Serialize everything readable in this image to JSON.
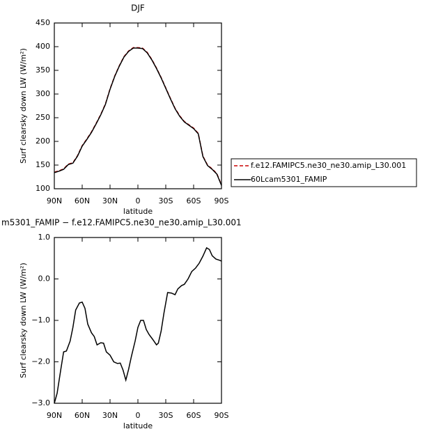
{
  "chart_data": [
    {
      "type": "line",
      "title": "DJF",
      "xlabel": "latitude",
      "ylabel": "Surf clearsky down LW (W/m²)",
      "x": [
        90,
        85,
        80,
        75,
        70,
        65,
        60,
        55,
        50,
        45,
        40,
        35,
        30,
        25,
        20,
        15,
        10,
        5,
        0,
        -5,
        -10,
        -15,
        -20,
        -25,
        -30,
        -35,
        -40,
        -45,
        -50,
        -55,
        -60,
        -65,
        -70,
        -75,
        -80,
        -85,
        -90
      ],
      "series": [
        {
          "name": "f.e12.FAMIPC5.ne30_ne30.amip_L30.001",
          "color": "#cc0000",
          "dash": true,
          "values": [
            135,
            138,
            142,
            152,
            155,
            170,
            191,
            205,
            220,
            238,
            257,
            279,
            311,
            338,
            360,
            379,
            391,
            398,
            398,
            397,
            388,
            373,
            355,
            335,
            313,
            291,
            270,
            254,
            242,
            235,
            228,
            217,
            169,
            150,
            142,
            132,
            108
          ]
        },
        {
          "name": "60Lcam5301_FAMIP",
          "color": "#000000",
          "dash": false,
          "values": [
            134,
            137,
            141,
            151,
            154,
            169,
            190,
            204,
            219,
            237,
            256,
            278,
            310,
            337,
            359,
            378,
            390,
            397,
            397,
            396,
            387,
            372,
            354,
            334,
            312,
            290,
            269,
            253,
            241,
            234,
            227,
            216,
            168,
            149,
            141,
            131,
            107
          ]
        }
      ],
      "xlim": [
        90,
        -90
      ],
      "xticks": [
        {
          "value": 90,
          "label": "90N"
        },
        {
          "value": 60,
          "label": "60N"
        },
        {
          "value": 30,
          "label": "30N"
        },
        0,
        {
          "value": -30,
          "label": "30S"
        },
        {
          "value": -60,
          "label": "60S"
        },
        {
          "value": -90,
          "label": "90S"
        }
      ],
      "ylim": [
        100,
        450
      ],
      "yticks": [
        100,
        150,
        200,
        250,
        300,
        350,
        400,
        450
      ],
      "legend": "right"
    },
    {
      "type": "line",
      "title": "m5301_FAMIP − f.e12.FAMIPC5.ne30_ne30.amip_L30.001",
      "xlabel": "latitude",
      "ylabel": "Surf clearsky down LW (W/m²)",
      "x": [
        90,
        87,
        83,
        80,
        77,
        73,
        70,
        67,
        63,
        60,
        57,
        54,
        50,
        47,
        44,
        40,
        37,
        34,
        30,
        26,
        22,
        19,
        16,
        13,
        10,
        7,
        3,
        0,
        -3,
        -6,
        -9,
        -12,
        -16,
        -20,
        -22,
        -25,
        -28,
        -32,
        -36,
        -40,
        -43,
        -47,
        -50,
        -54,
        -58,
        -62,
        -66,
        -70,
        -74,
        -77,
        -80,
        -84,
        -88,
        -90
      ],
      "values": [
        -3.0,
        -2.76,
        -2.18,
        -1.76,
        -1.74,
        -1.5,
        -1.17,
        -0.75,
        -0.58,
        -0.56,
        -0.71,
        -1.09,
        -1.3,
        -1.39,
        -1.59,
        -1.54,
        -1.55,
        -1.76,
        -1.84,
        -2.0,
        -2.04,
        -2.03,
        -2.2,
        -2.44,
        -2.18,
        -1.87,
        -1.5,
        -1.17,
        -1.0,
        -1.0,
        -1.22,
        -1.34,
        -1.46,
        -1.59,
        -1.55,
        -1.26,
        -0.83,
        -0.33,
        -0.34,
        -0.38,
        -0.24,
        -0.16,
        -0.13,
        0.0,
        0.18,
        0.26,
        0.38,
        0.55,
        0.75,
        0.71,
        0.56,
        0.48,
        0.45,
        0.43
      ],
      "color": "#000000",
      "xlim": [
        90,
        -90
      ],
      "xticks": [
        {
          "value": 90,
          "label": "90N"
        },
        {
          "value": 60,
          "label": "60N"
        },
        {
          "value": 30,
          "label": "30N"
        },
        0,
        {
          "value": -30,
          "label": "30S"
        },
        {
          "value": -60,
          "label": "60S"
        },
        {
          "value": -90,
          "label": "90S"
        }
      ],
      "ylim": [
        -3,
        1
      ],
      "yticks": [
        {
          "value": -3,
          "label": "−3.0"
        },
        {
          "value": -2,
          "label": "−2.0"
        },
        {
          "value": -1,
          "label": "−1.0"
        },
        {
          "value": 0,
          "label": "0.0"
        },
        {
          "value": 1,
          "label": "1.0"
        }
      ]
    }
  ]
}
